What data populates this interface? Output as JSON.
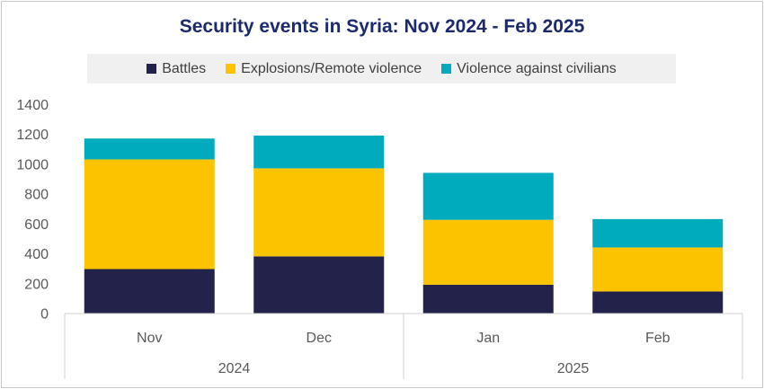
{
  "chart_data": {
    "type": "bar",
    "stacked": true,
    "title": "Security events in Syria: Nov 2024 - Feb 2025",
    "categories": [
      "Nov",
      "Dec",
      "Jan",
      "Feb"
    ],
    "category_groups": [
      {
        "label": "2024",
        "span": 2
      },
      {
        "label": "2025",
        "span": 2
      }
    ],
    "series": [
      {
        "name": "Battles",
        "color": "#22224a",
        "values": [
          295,
          380,
          190,
          145
        ]
      },
      {
        "name": "Explosions/Remote violence",
        "color": "#fcc400",
        "values": [
          735,
          590,
          435,
          295
        ]
      },
      {
        "name": "Violence against civilians",
        "color": "#00abbd",
        "values": [
          140,
          220,
          315,
          190
        ]
      }
    ],
    "ylim": [
      0,
      1400
    ],
    "yticks": [
      "0",
      "200",
      "400",
      "600",
      "800",
      "1000",
      "1200",
      "1400"
    ],
    "grid": false,
    "legend_position": "top"
  }
}
